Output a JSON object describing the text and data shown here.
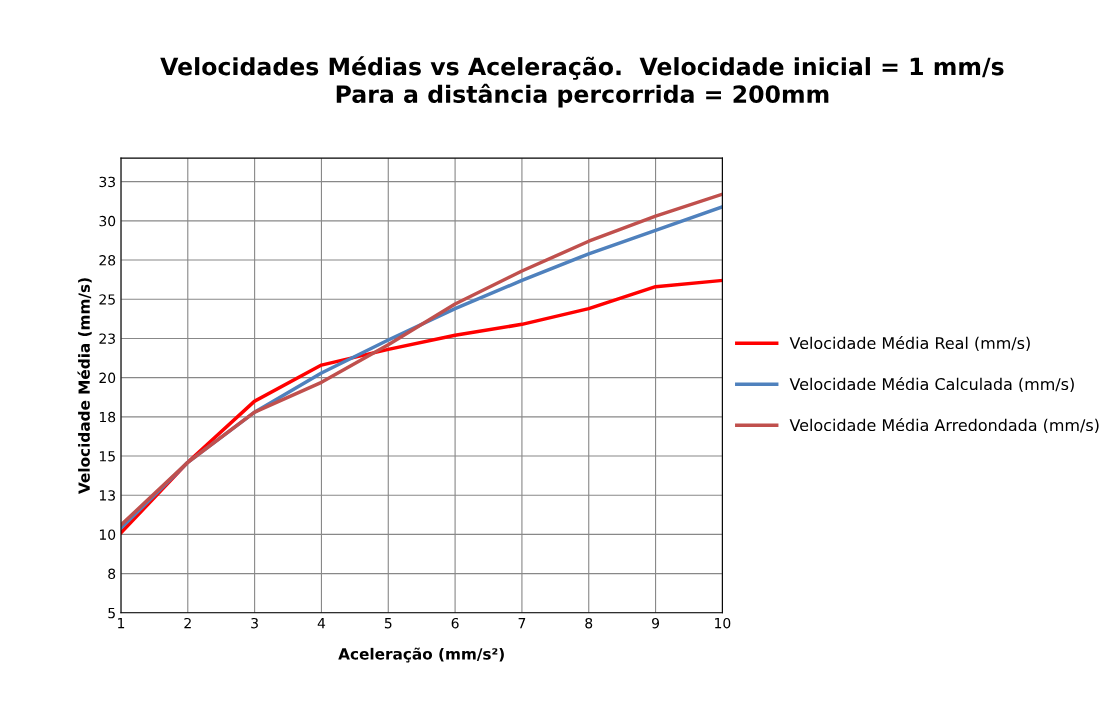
{
  "chart_data": {
    "type": "line",
    "title": "Velocidades Médias vs Aceleração.  Velocidade inicial = 1 mm/s\nPara a distância percorrida = 200mm",
    "xlabel": "Aceleração (mm/s²)",
    "ylabel": "Velocidade Média (mm/s)",
    "x": [
      1,
      2,
      3,
      4,
      5,
      6,
      7,
      8,
      9,
      10
    ],
    "series": [
      {
        "name": "Velocidade Média Real (mm/s)",
        "color": "#ff0000",
        "values": [
          10.1,
          14.6,
          18.5,
          20.8,
          21.8,
          22.7,
          23.4,
          24.4,
          25.8,
          26.2
        ]
      },
      {
        "name": "Velocidade Média Calculada (mm/s)",
        "color": "#4f81bd",
        "values": [
          10.4,
          14.6,
          17.8,
          20.3,
          22.4,
          24.4,
          26.2,
          27.9,
          29.4,
          30.9
        ]
      },
      {
        "name": "Velocidade Média Arredondada (mm/s)",
        "color": "#c0504d",
        "values": [
          10.6,
          14.6,
          17.8,
          19.7,
          22.1,
          24.7,
          26.8,
          28.7,
          30.3,
          31.7
        ]
      }
    ],
    "xlim": [
      1,
      10
    ],
    "xticks": [
      1,
      2,
      3,
      4,
      5,
      6,
      7,
      8,
      9,
      10
    ],
    "ylim": [
      5,
      34
    ],
    "yticks": [
      5,
      {
        "value": 7.5,
        "label": "8"
      },
      10,
      {
        "value": 12.5,
        "label": "13"
      },
      15,
      {
        "value": 17.5,
        "label": "18"
      },
      20,
      {
        "value": 22.5,
        "label": "23"
      },
      25,
      {
        "value": 27.5,
        "label": "28"
      },
      30,
      {
        "value": 32.5,
        "label": "33"
      }
    ],
    "grid": true,
    "legend": "right",
    "marker": "none",
    "line_style": "solid"
  }
}
